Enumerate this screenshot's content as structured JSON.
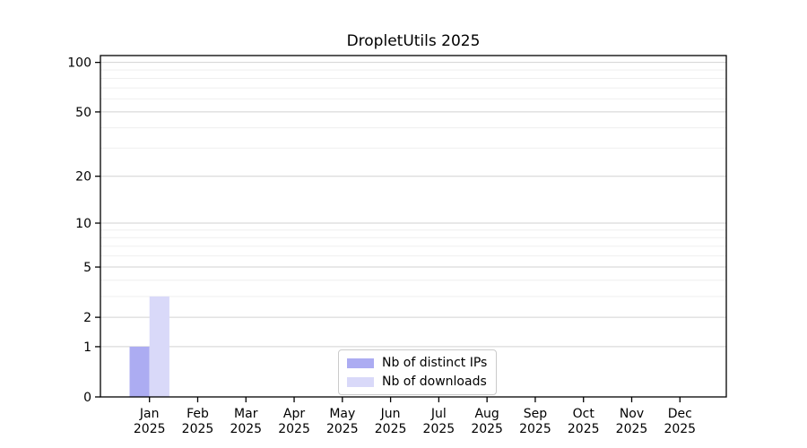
{
  "figure": {
    "title": "DropletUtils 2025"
  },
  "chart_data": {
    "type": "bar",
    "title": "DropletUtils 2025",
    "categories": [
      "Jan",
      "Feb",
      "Mar",
      "Apr",
      "May",
      "Jun",
      "Jul",
      "Aug",
      "Sep",
      "Oct",
      "Nov",
      "Dec"
    ],
    "category_year": "2025",
    "series": [
      {
        "name": "Nb of distinct IPs",
        "color": "#acacf2",
        "values": [
          1,
          0,
          0,
          0,
          0,
          0,
          0,
          0,
          0,
          0,
          0,
          0
        ]
      },
      {
        "name": "Nb of downloads",
        "color": "#d9d9f9",
        "values": [
          3,
          0,
          0,
          0,
          0,
          0,
          0,
          0,
          0,
          0,
          0,
          0
        ]
      }
    ],
    "y_scale": "log1p",
    "ylim": [
      0,
      110
    ],
    "y_major_ticks": [
      0,
      1,
      2,
      5,
      10,
      20,
      50,
      100
    ],
    "y_minor_gridlines": [
      3,
      4,
      6,
      7,
      8,
      9,
      30,
      40,
      60,
      70,
      80,
      90
    ],
    "grid": true,
    "legend_position": "bottom-center",
    "colors": {
      "grid_major": "#d2d2d2",
      "grid_minor": "#efefef",
      "axis": "#000000",
      "text": "#000000",
      "background": "#ffffff"
    }
  }
}
